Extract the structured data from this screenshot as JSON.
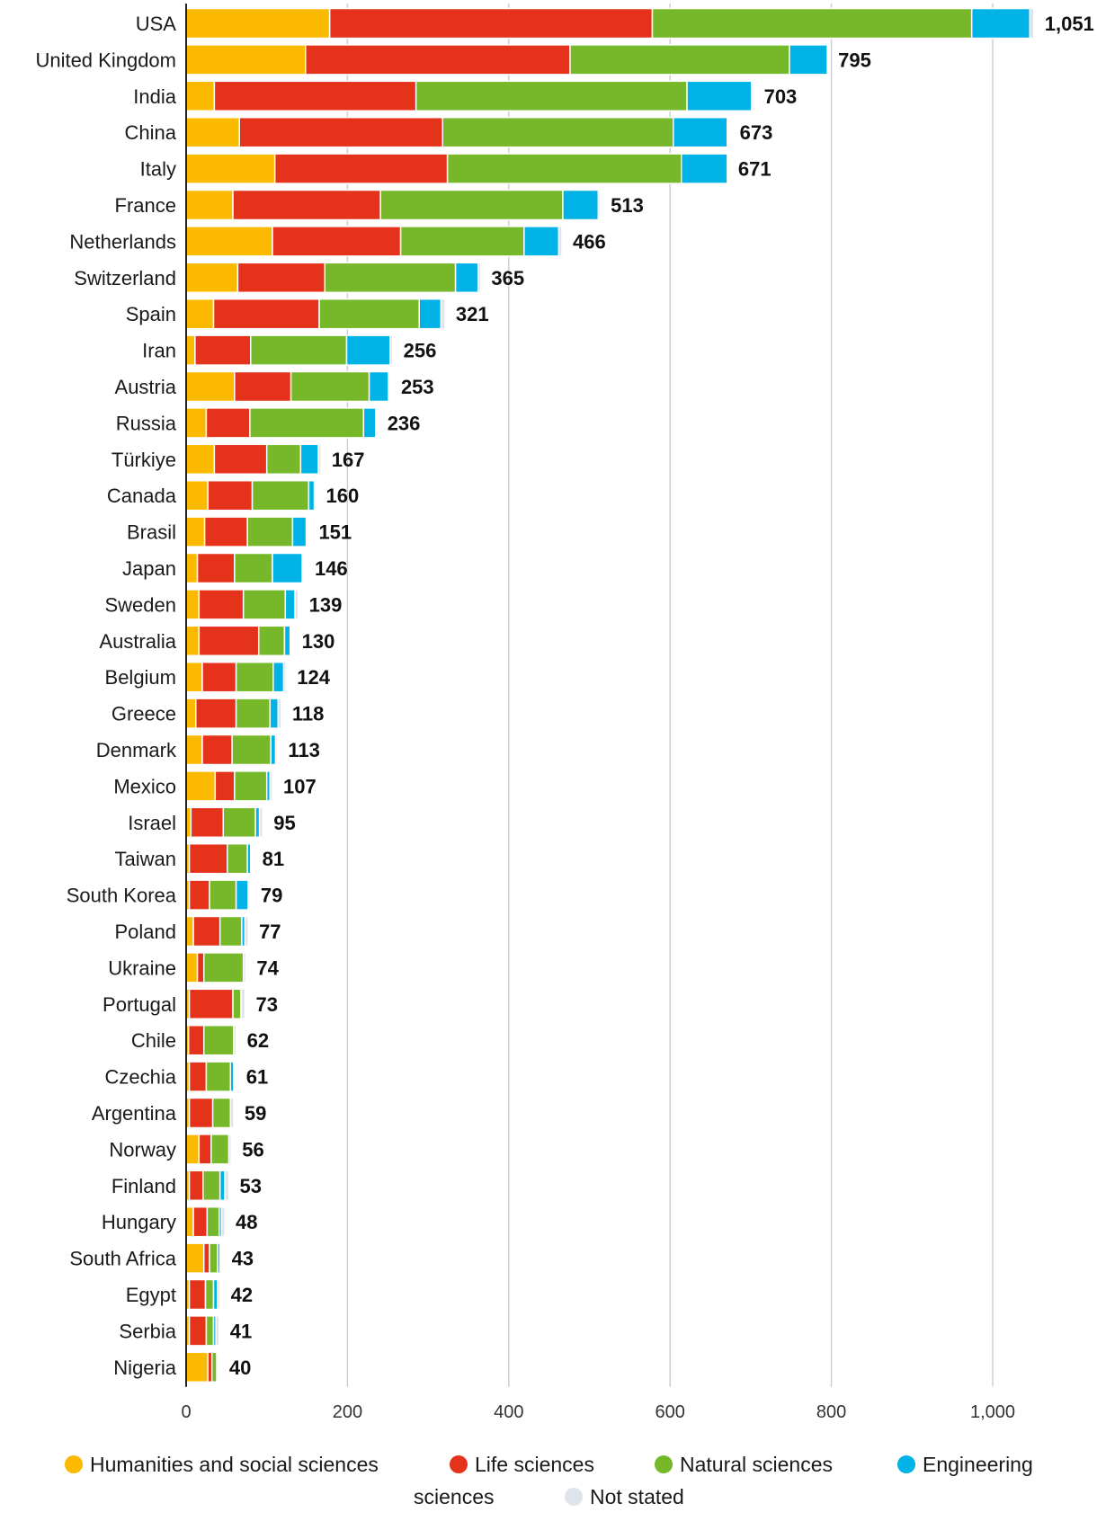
{
  "chart_data": {
    "type": "bar",
    "orientation": "horizontal",
    "stacked": true,
    "categories": [
      "USA",
      "United Kingdom",
      "India",
      "China",
      "Italy",
      "France",
      "Netherlands",
      "Switzerland",
      "Spain",
      "Iran",
      "Austria",
      "Russia",
      "Türkiye",
      "Canada",
      "Brasil",
      "Japan",
      "Sweden",
      "Australia",
      "Belgium",
      "Greece",
      "Denmark",
      "Mexico",
      "Israel",
      "Taiwan",
      "South Korea",
      "Poland",
      "Ukraine",
      "Portugal",
      "Chile",
      "Czechia",
      "Argentina",
      "Norway",
      "Finland",
      "Hungary",
      "South Africa",
      "Egypt",
      "Serbia",
      "Nigeria"
    ],
    "totals": [
      1051,
      795,
      703,
      673,
      671,
      513,
      466,
      365,
      321,
      256,
      253,
      236,
      167,
      160,
      151,
      146,
      139,
      130,
      124,
      118,
      113,
      107,
      95,
      81,
      79,
      77,
      74,
      73,
      62,
      61,
      59,
      56,
      53,
      48,
      43,
      42,
      41,
      40
    ],
    "total_labels": [
      "1,051",
      "795",
      "703",
      "673",
      "671",
      "513",
      "466",
      "365",
      "321",
      "256",
      "253",
      "236",
      "167",
      "160",
      "151",
      "146",
      "139",
      "130",
      "124",
      "118",
      "113",
      "107",
      "95",
      "81",
      "79",
      "77",
      "74",
      "73",
      "62",
      "61",
      "59",
      "56",
      "53",
      "48",
      "43",
      "42",
      "41",
      "40"
    ],
    "series": [
      {
        "name": "Humanities and social sciences",
        "color": "#fbb900",
        "values": [
          178,
          148,
          35,
          66,
          110,
          58,
          107,
          64,
          34,
          11,
          60,
          25,
          35,
          27,
          23,
          14,
          16,
          16,
          20,
          12,
          20,
          36,
          6,
          4,
          4,
          9,
          14,
          4,
          3,
          4,
          4,
          16,
          4,
          9,
          22,
          4,
          4,
          27
        ]
      },
      {
        "name": "Life sciences",
        "color": "#e5321a",
        "values": [
          400,
          328,
          250,
          252,
          214,
          183,
          159,
          108,
          131,
          69,
          70,
          54,
          65,
          55,
          53,
          46,
          55,
          74,
          42,
          50,
          37,
          24,
          40,
          47,
          25,
          33,
          8,
          54,
          19,
          21,
          29,
          15,
          17,
          17,
          7,
          20,
          21,
          5
        ]
      },
      {
        "name": "Natural sciences",
        "color": "#76b82a",
        "values": [
          396,
          272,
          336,
          286,
          290,
          226,
          153,
          162,
          124,
          119,
          97,
          141,
          42,
          70,
          56,
          47,
          52,
          32,
          46,
          42,
          48,
          40,
          40,
          25,
          33,
          27,
          49,
          10,
          37,
          30,
          22,
          22,
          21,
          15,
          10,
          10,
          9,
          6
        ]
      },
      {
        "name": "Engineering sciences",
        "color": "#00b2e5",
        "values": [
          72,
          47,
          80,
          67,
          57,
          44,
          43,
          28,
          27,
          54,
          24,
          15,
          22,
          7,
          17,
          37,
          12,
          7,
          13,
          10,
          6,
          4,
          5,
          4,
          15,
          4,
          0,
          0,
          0,
          4,
          0,
          0,
          6,
          3,
          3,
          5,
          3,
          0
        ]
      },
      {
        "name": "Not stated",
        "color": "#dfe3ec",
        "values": [
          5,
          0,
          2,
          2,
          0,
          2,
          4,
          3,
          5,
          3,
          2,
          1,
          3,
          1,
          2,
          2,
          4,
          1,
          3,
          4,
          2,
          3,
          4,
          1,
          2,
          4,
          3,
          5,
          3,
          2,
          4,
          3,
          5,
          4,
          1,
          3,
          4,
          2
        ]
      }
    ],
    "xlim": [
      0,
      1100
    ],
    "xticks": [
      0,
      200,
      400,
      600,
      800,
      1000
    ],
    "xtick_labels": [
      "0",
      "200",
      "400",
      "600",
      "800",
      "1,000"
    ],
    "title": "",
    "xlabel": "",
    "ylabel": "",
    "grid": true,
    "legend": {
      "placement": "bottom",
      "entries": [
        {
          "label": "Humanities and social sciences",
          "color": "#fbb900"
        },
        {
          "label": "Life sciences",
          "color": "#e5321a"
        },
        {
          "label": "Natural sciences",
          "color": "#76b82a"
        },
        {
          "label": "Engineering",
          "color": "#00b2e5"
        },
        {
          "label": "sciences",
          "color": ""
        },
        {
          "label": "Not stated",
          "color": "#dfe3ec"
        }
      ]
    }
  }
}
